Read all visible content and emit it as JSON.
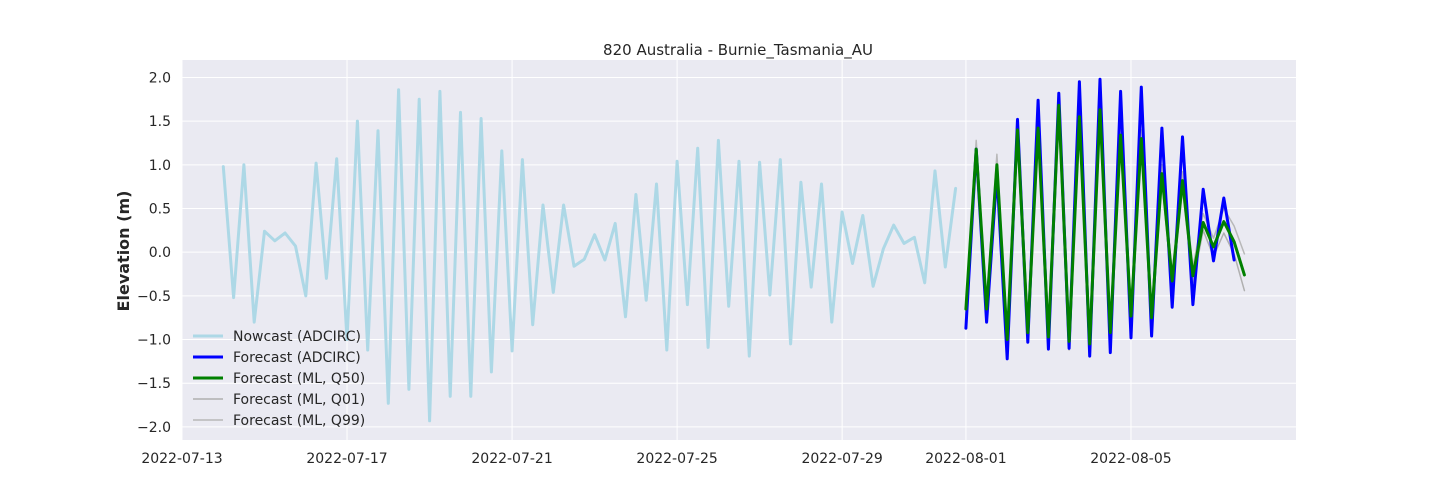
{
  "chart_data": {
    "type": "line",
    "title": "820 Australia - Burnie_Tasmania_AU",
    "xlabel": "",
    "ylabel": "Elevation (m)",
    "ylim": [
      -2.15,
      2.2
    ],
    "xlim": [
      "2022-07-13T00:00",
      "2022-08-09T00:00"
    ],
    "yticks": [
      -2.0,
      -1.5,
      -1.0,
      -0.5,
      0.0,
      0.5,
      1.0,
      1.5,
      2.0
    ],
    "ytick_labels": [
      "−2.0",
      "−1.5",
      "−1.0",
      "−0.5",
      "0.0",
      "0.5",
      "1.0",
      "1.5",
      "2.0"
    ],
    "xticks": [
      "2022-07-13",
      "2022-07-17",
      "2022-07-21",
      "2022-07-25",
      "2022-07-29",
      "2022-08-01",
      "2022-08-05"
    ],
    "grid": true,
    "legend_position": "lower-left",
    "background": "#eaeaf2",
    "series": [
      {
        "name": "Nowcast (ADCIRC)",
        "color": "#add8e6",
        "width": 3,
        "points": [
          [
            "2022-07-14T00:00",
            0.98
          ],
          [
            "2022-07-14T06:00",
            -0.52
          ],
          [
            "2022-07-14T12:00",
            1.0
          ],
          [
            "2022-07-14T18:00",
            -0.8
          ],
          [
            "2022-07-15T00:00",
            0.24
          ],
          [
            "2022-07-15T06:00",
            0.13
          ],
          [
            "2022-07-15T12:00",
            0.22
          ],
          [
            "2022-07-15T18:00",
            0.07
          ],
          [
            "2022-07-16T00:00",
            -0.5
          ],
          [
            "2022-07-16T06:00",
            1.02
          ],
          [
            "2022-07-16T12:00",
            -0.3
          ],
          [
            "2022-07-16T18:00",
            1.07
          ],
          [
            "2022-07-17T00:00",
            -1.0
          ],
          [
            "2022-07-17T06:00",
            1.5
          ],
          [
            "2022-07-17T12:00",
            -1.12
          ],
          [
            "2022-07-17T18:00",
            1.39
          ],
          [
            "2022-07-18T00:00",
            -1.73
          ],
          [
            "2022-07-18T06:00",
            1.86
          ],
          [
            "2022-07-18T12:00",
            -1.57
          ],
          [
            "2022-07-18T18:00",
            1.75
          ],
          [
            "2022-07-19T00:00",
            -1.93
          ],
          [
            "2022-07-19T06:00",
            1.84
          ],
          [
            "2022-07-19T12:00",
            -1.65
          ],
          [
            "2022-07-19T18:00",
            1.6
          ],
          [
            "2022-07-20T00:00",
            -1.65
          ],
          [
            "2022-07-20T06:00",
            1.53
          ],
          [
            "2022-07-20T12:00",
            -1.37
          ],
          [
            "2022-07-20T18:00",
            1.16
          ],
          [
            "2022-07-21T00:00",
            -1.13
          ],
          [
            "2022-07-21T06:00",
            1.06
          ],
          [
            "2022-07-21T12:00",
            -0.83
          ],
          [
            "2022-07-21T18:00",
            0.54
          ],
          [
            "2022-07-22T00:00",
            -0.46
          ],
          [
            "2022-07-22T06:00",
            0.54
          ],
          [
            "2022-07-22T12:00",
            -0.16
          ],
          [
            "2022-07-22T18:00",
            -0.08
          ],
          [
            "2022-07-23T00:00",
            0.2
          ],
          [
            "2022-07-23T06:00",
            -0.09
          ],
          [
            "2022-07-23T12:00",
            0.33
          ],
          [
            "2022-07-23T18:00",
            -0.74
          ],
          [
            "2022-07-24T00:00",
            0.66
          ],
          [
            "2022-07-24T06:00",
            -0.55
          ],
          [
            "2022-07-24T12:00",
            0.78
          ],
          [
            "2022-07-24T18:00",
            -1.12
          ],
          [
            "2022-07-25T00:00",
            1.04
          ],
          [
            "2022-07-25T06:00",
            -0.6
          ],
          [
            "2022-07-25T12:00",
            1.19
          ],
          [
            "2022-07-25T18:00",
            -1.09
          ],
          [
            "2022-07-26T00:00",
            1.28
          ],
          [
            "2022-07-26T06:00",
            -0.62
          ],
          [
            "2022-07-26T12:00",
            1.04
          ],
          [
            "2022-07-26T18:00",
            -1.19
          ],
          [
            "2022-07-27T00:00",
            1.03
          ],
          [
            "2022-07-27T06:00",
            -0.49
          ],
          [
            "2022-07-27T12:00",
            1.06
          ],
          [
            "2022-07-27T18:00",
            -1.05
          ],
          [
            "2022-07-28T00:00",
            0.8
          ],
          [
            "2022-07-28T06:00",
            -0.4
          ],
          [
            "2022-07-28T12:00",
            0.78
          ],
          [
            "2022-07-28T18:00",
            -0.8
          ],
          [
            "2022-07-29T00:00",
            0.46
          ],
          [
            "2022-07-29T06:00",
            -0.13
          ],
          [
            "2022-07-29T12:00",
            0.42
          ],
          [
            "2022-07-29T18:00",
            -0.39
          ],
          [
            "2022-07-30T00:00",
            0.04
          ],
          [
            "2022-07-30T06:00",
            0.31
          ],
          [
            "2022-07-30T12:00",
            0.1
          ],
          [
            "2022-07-30T18:00",
            0.17
          ],
          [
            "2022-07-31T00:00",
            -0.35
          ],
          [
            "2022-07-31T06:00",
            0.93
          ],
          [
            "2022-07-31T12:00",
            -0.17
          ],
          [
            "2022-07-31T18:00",
            0.73
          ]
        ]
      },
      {
        "name": "Forecast (ADCIRC)",
        "color": "#0000ff",
        "width": 3,
        "points": [
          [
            "2022-08-01T00:00",
            -0.87
          ],
          [
            "2022-08-01T06:00",
            1.18
          ],
          [
            "2022-08-01T12:00",
            -0.8
          ],
          [
            "2022-08-01T18:00",
            0.9
          ],
          [
            "2022-08-02T00:00",
            -1.22
          ],
          [
            "2022-08-02T06:00",
            1.52
          ],
          [
            "2022-08-02T12:00",
            -1.03
          ],
          [
            "2022-08-02T18:00",
            1.74
          ],
          [
            "2022-08-03T00:00",
            -1.11
          ],
          [
            "2022-08-03T06:00",
            1.82
          ],
          [
            "2022-08-03T12:00",
            -1.1
          ],
          [
            "2022-08-03T18:00",
            1.95
          ],
          [
            "2022-08-04T00:00",
            -1.19
          ],
          [
            "2022-08-04T06:00",
            1.98
          ],
          [
            "2022-08-04T12:00",
            -1.15
          ],
          [
            "2022-08-04T18:00",
            1.84
          ],
          [
            "2022-08-05T00:00",
            -0.98
          ],
          [
            "2022-08-05T06:00",
            1.89
          ],
          [
            "2022-08-05T12:00",
            -0.96
          ],
          [
            "2022-08-05T18:00",
            1.42
          ],
          [
            "2022-08-06T00:00",
            -0.63
          ],
          [
            "2022-08-06T06:00",
            1.32
          ],
          [
            "2022-08-06T12:00",
            -0.6
          ],
          [
            "2022-08-06T18:00",
            0.72
          ],
          [
            "2022-08-07T00:00",
            -0.1
          ],
          [
            "2022-08-07T06:00",
            0.62
          ],
          [
            "2022-08-07T12:00",
            -0.09
          ]
        ]
      },
      {
        "name": "Forecast (ML, Q50)",
        "color": "#008000",
        "width": 3,
        "points": [
          [
            "2022-08-01T00:00",
            -0.65
          ],
          [
            "2022-08-01T06:00",
            1.18
          ],
          [
            "2022-08-01T12:00",
            -0.65
          ],
          [
            "2022-08-01T18:00",
            1.0
          ],
          [
            "2022-08-02T00:00",
            -1.0
          ],
          [
            "2022-08-02T06:00",
            1.4
          ],
          [
            "2022-08-02T12:00",
            -0.92
          ],
          [
            "2022-08-02T18:00",
            1.42
          ],
          [
            "2022-08-03T00:00",
            -0.97
          ],
          [
            "2022-08-03T06:00",
            1.68
          ],
          [
            "2022-08-03T12:00",
            -1.02
          ],
          [
            "2022-08-03T18:00",
            1.55
          ],
          [
            "2022-08-04T00:00",
            -1.05
          ],
          [
            "2022-08-04T06:00",
            1.63
          ],
          [
            "2022-08-04T12:00",
            -0.92
          ],
          [
            "2022-08-04T18:00",
            1.34
          ],
          [
            "2022-08-05T00:00",
            -0.73
          ],
          [
            "2022-08-05T06:00",
            1.3
          ],
          [
            "2022-08-05T12:00",
            -0.75
          ],
          [
            "2022-08-05T18:00",
            0.9
          ],
          [
            "2022-08-06T00:00",
            -0.33
          ],
          [
            "2022-08-06T06:00",
            0.82
          ],
          [
            "2022-08-06T12:00",
            -0.27
          ],
          [
            "2022-08-06T18:00",
            0.34
          ],
          [
            "2022-08-07T00:00",
            0.06
          ],
          [
            "2022-08-07T06:00",
            0.35
          ],
          [
            "2022-08-07T12:00",
            0.12
          ],
          [
            "2022-08-07T18:00",
            -0.26
          ]
        ]
      },
      {
        "name": "Forecast (ML, Q01)",
        "color": "#b0b0b0",
        "width": 1.5,
        "points": [
          [
            "2022-08-01T00:00",
            -0.72
          ],
          [
            "2022-08-01T06:00",
            1.1
          ],
          [
            "2022-08-01T12:00",
            -0.75
          ],
          [
            "2022-08-01T18:00",
            0.9
          ],
          [
            "2022-08-02T00:00",
            -1.12
          ],
          [
            "2022-08-02T06:00",
            1.3
          ],
          [
            "2022-08-02T12:00",
            -1.02
          ],
          [
            "2022-08-02T18:00",
            1.32
          ],
          [
            "2022-08-03T00:00",
            -1.08
          ],
          [
            "2022-08-03T06:00",
            1.55
          ],
          [
            "2022-08-03T12:00",
            -1.12
          ],
          [
            "2022-08-03T18:00",
            1.45
          ],
          [
            "2022-08-04T00:00",
            -1.13
          ],
          [
            "2022-08-04T06:00",
            1.52
          ],
          [
            "2022-08-04T12:00",
            -1.0
          ],
          [
            "2022-08-04T18:00",
            1.25
          ],
          [
            "2022-08-05T00:00",
            -0.82
          ],
          [
            "2022-08-05T06:00",
            1.2
          ],
          [
            "2022-08-05T12:00",
            -0.83
          ],
          [
            "2022-08-05T18:00",
            0.8
          ],
          [
            "2022-08-06T00:00",
            -0.42
          ],
          [
            "2022-08-06T06:00",
            0.72
          ],
          [
            "2022-08-06T12:00",
            -0.35
          ],
          [
            "2022-08-06T18:00",
            0.25
          ],
          [
            "2022-08-07T00:00",
            -0.05
          ],
          [
            "2022-08-07T06:00",
            0.22
          ],
          [
            "2022-08-07T12:00",
            -0.02
          ],
          [
            "2022-08-07T18:00",
            -0.44
          ]
        ]
      },
      {
        "name": "Forecast (ML, Q99)",
        "color": "#b8b8b8",
        "width": 1.5,
        "points": [
          [
            "2022-08-01T00:00",
            -0.58
          ],
          [
            "2022-08-01T06:00",
            1.28
          ],
          [
            "2022-08-01T12:00",
            -0.55
          ],
          [
            "2022-08-01T18:00",
            1.12
          ],
          [
            "2022-08-02T00:00",
            -0.9
          ],
          [
            "2022-08-02T06:00",
            1.5
          ],
          [
            "2022-08-02T12:00",
            -0.82
          ],
          [
            "2022-08-02T18:00",
            1.52
          ],
          [
            "2022-08-03T00:00",
            -0.88
          ],
          [
            "2022-08-03T06:00",
            1.78
          ],
          [
            "2022-08-03T12:00",
            -0.92
          ],
          [
            "2022-08-03T18:00",
            1.66
          ],
          [
            "2022-08-04T00:00",
            -0.95
          ],
          [
            "2022-08-04T06:00",
            1.73
          ],
          [
            "2022-08-04T12:00",
            -0.82
          ],
          [
            "2022-08-04T18:00",
            1.44
          ],
          [
            "2022-08-05T00:00",
            -0.63
          ],
          [
            "2022-08-05T06:00",
            1.4
          ],
          [
            "2022-08-05T12:00",
            -0.65
          ],
          [
            "2022-08-05T18:00",
            1.0
          ],
          [
            "2022-08-06T00:00",
            -0.23
          ],
          [
            "2022-08-06T06:00",
            0.92
          ],
          [
            "2022-08-06T12:00",
            -0.17
          ],
          [
            "2022-08-06T18:00",
            0.44
          ],
          [
            "2022-08-07T00:00",
            0.16
          ],
          [
            "2022-08-07T06:00",
            0.5
          ],
          [
            "2022-08-07T12:00",
            0.3
          ],
          [
            "2022-08-07T18:00",
            -0.02
          ]
        ]
      }
    ]
  }
}
